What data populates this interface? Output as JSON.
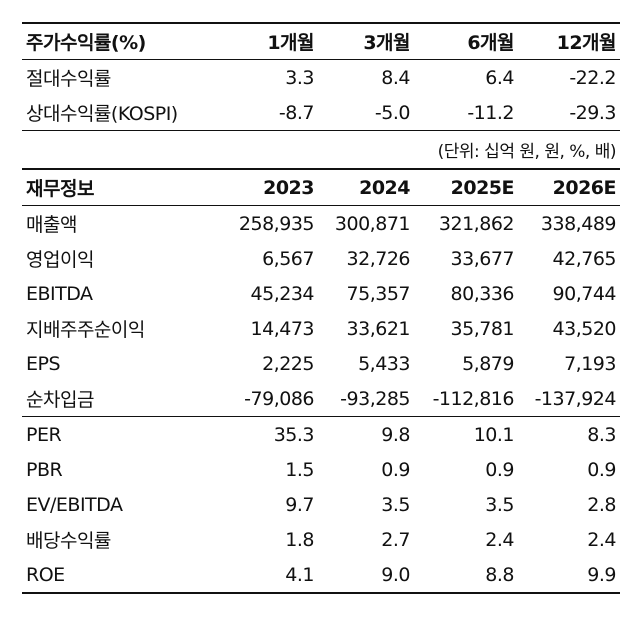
{
  "returns": {
    "header": [
      "주가수익률(%)",
      "1개월",
      "3개월",
      "6개월",
      "12개월"
    ],
    "rows": [
      [
        "절대수익률",
        "3.3",
        "8.4",
        "6.4",
        "-22.2"
      ],
      [
        "상대수익률(KOSPI)",
        "-8.7",
        "-5.0",
        "-11.2",
        "-29.3"
      ]
    ]
  },
  "unit_note": "(단위: 십억 원, 원, %, 배)",
  "financials": {
    "header": [
      "재무정보",
      "2023",
      "2024",
      "2025E",
      "2026E"
    ],
    "rows": [
      [
        "매출액",
        "258,935",
        "300,871",
        "321,862",
        "338,489"
      ],
      [
        "영업이익",
        "6,567",
        "32,726",
        "33,677",
        "42,765"
      ],
      [
        "EBITDA",
        "45,234",
        "75,357",
        "80,336",
        "90,744"
      ],
      [
        "지배주주순이익",
        "14,473",
        "33,621",
        "35,781",
        "43,520"
      ],
      [
        "EPS",
        "2,225",
        "5,433",
        "5,879",
        "7,193"
      ],
      [
        "순차입금",
        "-79,086",
        "-93,285",
        "-112,816",
        "-137,924"
      ]
    ],
    "ratio_rows": [
      [
        "PER",
        "35.3",
        "9.8",
        "10.1",
        "8.3"
      ],
      [
        "PBR",
        "1.5",
        "0.9",
        "0.9",
        "0.9"
      ],
      [
        "EV/EBITDA",
        "9.7",
        "3.5",
        "3.5",
        "2.8"
      ],
      [
        "배당수익률",
        "1.8",
        "2.7",
        "2.4",
        "2.4"
      ],
      [
        "ROE",
        "4.1",
        "9.0",
        "8.8",
        "9.9"
      ]
    ]
  }
}
